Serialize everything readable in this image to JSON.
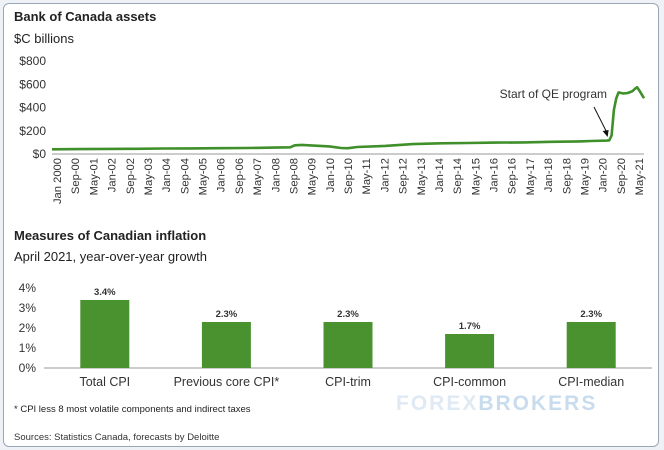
{
  "chart_data": [
    {
      "type": "line",
      "title": "Bank of Canada assets",
      "ylabel": "$C billions",
      "yticks": [
        "$0",
        "$200",
        "$400",
        "$600",
        "$800"
      ],
      "ylim": [
        0,
        800
      ],
      "xlim": [
        "2000-01",
        "2021-05"
      ],
      "xticks": [
        "Jan 2000",
        "Sep-00",
        "May-01",
        "Jan-02",
        "Sep-02",
        "May-03",
        "Jan-04",
        "Sep-04",
        "May-05",
        "Jan-06",
        "Sep-06",
        "May-07",
        "Jan-08",
        "Sep-08",
        "May-09",
        "Jan-10",
        "Sep-10",
        "May-11",
        "Jan-12",
        "Sep-12",
        "May-13",
        "Jan-14",
        "Sep-14",
        "May-15",
        "Jan-16",
        "Sep-16",
        "May-17",
        "Jan-18",
        "Sep-18",
        "May-19",
        "Jan-20",
        "Sep-20",
        "May-21"
      ],
      "annotation": "Start of QE program",
      "annotation_x": "2020-03",
      "color": "#3f8f2a",
      "grid": false,
      "series": [
        {
          "x": [
            "2000-01",
            "2001-01",
            "2002-01",
            "2003-01",
            "2004-01",
            "2005-01",
            "2006-01",
            "2007-01",
            "2008-01",
            "2008-08",
            "2008-10",
            "2009-01",
            "2009-05",
            "2009-09",
            "2010-01",
            "2010-06",
            "2010-09",
            "2011-01",
            "2012-01",
            "2013-01",
            "2014-01",
            "2015-01",
            "2016-01",
            "2017-01",
            "2018-01",
            "2019-01",
            "2019-06",
            "2020-01",
            "2020-02",
            "2020-03",
            "2020-04",
            "2020-05",
            "2020-06",
            "2020-08",
            "2020-10",
            "2020-12",
            "2021-01",
            "2021-02",
            "2021-03",
            "2021-05"
          ],
          "values": [
            40,
            42,
            44,
            45,
            47,
            48,
            50,
            52,
            55,
            58,
            75,
            78,
            74,
            70,
            65,
            52,
            50,
            60,
            70,
            85,
            92,
            95,
            98,
            100,
            105,
            108,
            112,
            115,
            118,
            160,
            380,
            480,
            530,
            520,
            525,
            540,
            560,
            575,
            545,
            480
          ]
        }
      ]
    },
    {
      "type": "bar",
      "title": "Measures of Canadian inflation",
      "subtitle": "April 2021, year-over-year growth",
      "categories": [
        "Total CPI",
        "Previous core CPI*",
        "CPI-trim",
        "CPI-common",
        "CPI-median"
      ],
      "values": [
        3.4,
        2.3,
        2.3,
        1.7,
        2.3
      ],
      "value_labels": [
        "3.4%",
        "2.3%",
        "2.3%",
        "1.7%",
        "2.3%"
      ],
      "yticks": [
        "0%",
        "1%",
        "2%",
        "3%",
        "4%"
      ],
      "ylim": [
        0,
        4
      ],
      "color": "#4a9130",
      "grid": false
    }
  ],
  "footnote": "* CPI less 8 most volatile components and indirect taxes",
  "source": "Sources: Statistics Canada, forecasts by Deloitte",
  "watermark": {
    "part1": "FOREX",
    "part2": "BROKERS"
  }
}
